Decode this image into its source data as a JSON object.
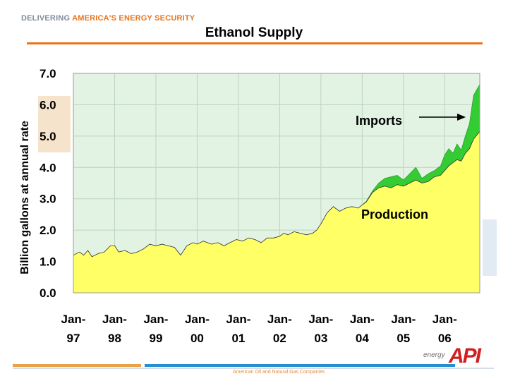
{
  "header": {
    "tag_part1": "DELIVERING ",
    "tag_part2": "AMERICA'S ENERGY SECURITY"
  },
  "footer": {
    "text": "American Oil and Natural Gas Companies",
    "logo_small": "energy",
    "logo_main": "API"
  },
  "colors": {
    "production": "#ffff66",
    "imports": "#33cc33",
    "plot_bg": "#e3f3e3",
    "accent": "#e8731a"
  },
  "chart_data": {
    "type": "area",
    "title": "Ethanol Supply",
    "ylabel": "Billion gallons at annual rate",
    "xlabel": "",
    "ylim": [
      0,
      7
    ],
    "yticks": [
      "0.0",
      "1.0",
      "2.0",
      "3.0",
      "4.0",
      "5.0",
      "6.0",
      "7.0"
    ],
    "xrange": [
      1997.0,
      2006.85
    ],
    "xticks": [
      {
        "x": 1997,
        "line1": "Jan-",
        "line2": "97"
      },
      {
        "x": 1998,
        "line1": "Jan-",
        "line2": "98"
      },
      {
        "x": 1999,
        "line1": "Jan-",
        "line2": "99"
      },
      {
        "x": 2000,
        "line1": "Jan-",
        "line2": "00"
      },
      {
        "x": 2001,
        "line1": "Jan-",
        "line2": "01"
      },
      {
        "x": 2002,
        "line1": "Jan-",
        "line2": "02"
      },
      {
        "x": 2003,
        "line1": "Jan-",
        "line2": "03"
      },
      {
        "x": 2004,
        "line1": "Jan-",
        "line2": "04"
      },
      {
        "x": 2005,
        "line1": "Jan-",
        "line2": "05"
      },
      {
        "x": 2006,
        "line1": "Jan-",
        "line2": "06"
      }
    ],
    "grid": true,
    "annotations": [
      {
        "text": "Imports",
        "series": "imports"
      },
      {
        "text": "Production",
        "series": "production"
      }
    ],
    "x": [
      1997.0,
      1997.15,
      1997.25,
      1997.35,
      1997.45,
      1997.6,
      1997.75,
      1997.9,
      1998.0,
      1998.1,
      1998.25,
      1998.4,
      1998.55,
      1998.7,
      1998.85,
      1999.0,
      1999.15,
      1999.3,
      1999.45,
      1999.6,
      1999.75,
      1999.9,
      2000.0,
      2000.15,
      2000.25,
      2000.35,
      2000.5,
      2000.65,
      2000.8,
      2000.95,
      2001.1,
      2001.25,
      2001.4,
      2001.55,
      2001.7,
      2001.85,
      2002.0,
      2002.1,
      2002.2,
      2002.35,
      2002.5,
      2002.65,
      2002.8,
      2002.9,
      2003.0,
      2003.15,
      2003.3,
      2003.45,
      2003.6,
      2003.75,
      2003.9,
      2004.0,
      2004.1,
      2004.25,
      2004.4,
      2004.55,
      2004.7,
      2004.85,
      2005.0,
      2005.15,
      2005.3,
      2005.45,
      2005.6,
      2005.75,
      2005.9,
      2006.0,
      2006.1,
      2006.2,
      2006.3,
      2006.4,
      2006.5,
      2006.6,
      2006.7,
      2006.85
    ],
    "series": [
      {
        "name": "Production",
        "values": [
          1.2,
          1.3,
          1.2,
          1.35,
          1.15,
          1.25,
          1.3,
          1.5,
          1.5,
          1.3,
          1.35,
          1.25,
          1.3,
          1.4,
          1.55,
          1.5,
          1.55,
          1.5,
          1.45,
          1.2,
          1.5,
          1.6,
          1.55,
          1.65,
          1.6,
          1.55,
          1.6,
          1.5,
          1.6,
          1.7,
          1.65,
          1.75,
          1.7,
          1.6,
          1.75,
          1.75,
          1.8,
          1.9,
          1.85,
          1.95,
          1.9,
          1.85,
          1.9,
          2.0,
          2.2,
          2.55,
          2.75,
          2.6,
          2.7,
          2.75,
          2.7,
          2.8,
          2.9,
          3.2,
          3.35,
          3.4,
          3.35,
          3.45,
          3.4,
          3.5,
          3.6,
          3.5,
          3.55,
          3.7,
          3.75,
          3.9,
          4.05,
          4.15,
          4.25,
          4.2,
          4.45,
          4.6,
          4.9,
          5.15
        ]
      },
      {
        "name": "Imports",
        "values": [
          0,
          0,
          0,
          0,
          0,
          0,
          0,
          0,
          0,
          0,
          0,
          0,
          0,
          0,
          0,
          0,
          0,
          0,
          0,
          0,
          0,
          0,
          0,
          0,
          0,
          0,
          0,
          0,
          0,
          0,
          0,
          0,
          0,
          0,
          0,
          0,
          0,
          0,
          0,
          0,
          0,
          0,
          0,
          0,
          0,
          0,
          0,
          0,
          0,
          0,
          0,
          0,
          0.02,
          0.05,
          0.15,
          0.25,
          0.35,
          0.3,
          0.2,
          0.3,
          0.4,
          0.15,
          0.25,
          0.2,
          0.3,
          0.5,
          0.55,
          0.3,
          0.5,
          0.35,
          0.55,
          0.8,
          1.4,
          1.5
        ]
      }
    ]
  }
}
